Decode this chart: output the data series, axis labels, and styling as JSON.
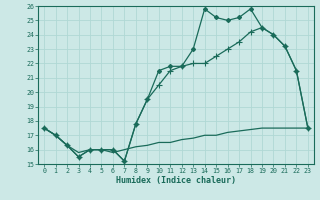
{
  "xlabel": "Humidex (Indice chaleur)",
  "line1_x": [
    0,
    1,
    2,
    3,
    4,
    5,
    6,
    7,
    8,
    9,
    10,
    11,
    12,
    13,
    14,
    15,
    16,
    17,
    18,
    19,
    20,
    21,
    22,
    23
  ],
  "line1_y": [
    17.5,
    17.0,
    16.3,
    15.5,
    16.0,
    16.0,
    16.0,
    15.2,
    17.8,
    19.5,
    21.5,
    21.8,
    21.8,
    23.0,
    25.8,
    25.2,
    25.0,
    25.2,
    25.8,
    24.5,
    24.0,
    23.2,
    21.5,
    17.5
  ],
  "line2_x": [
    0,
    1,
    2,
    3,
    4,
    5,
    6,
    7,
    8,
    9,
    10,
    11,
    12,
    13,
    14,
    15,
    16,
    17,
    18,
    19,
    20,
    21,
    22,
    23
  ],
  "line2_y": [
    17.5,
    17.0,
    16.3,
    15.5,
    16.0,
    16.0,
    16.0,
    15.2,
    17.8,
    19.5,
    20.5,
    21.5,
    21.8,
    22.0,
    22.0,
    22.5,
    23.0,
    23.5,
    24.2,
    24.5,
    24.0,
    23.2,
    21.5,
    17.5
  ],
  "line3_x": [
    0,
    1,
    2,
    3,
    4,
    5,
    6,
    7,
    8,
    9,
    10,
    11,
    12,
    13,
    14,
    15,
    16,
    17,
    18,
    19,
    20,
    21,
    22,
    23
  ],
  "line3_y": [
    17.5,
    17.0,
    16.3,
    15.8,
    16.0,
    16.0,
    15.8,
    16.0,
    16.2,
    16.3,
    16.5,
    16.5,
    16.7,
    16.8,
    17.0,
    17.0,
    17.2,
    17.3,
    17.4,
    17.5,
    17.5,
    17.5,
    17.5,
    17.5
  ],
  "line_color": "#1a6b5a",
  "bg_color": "#cce8e6",
  "grid_color": "#b0d8d5",
  "ylim": [
    15,
    26
  ],
  "xlim": [
    -0.5,
    23.5
  ],
  "yticks": [
    15,
    16,
    17,
    18,
    19,
    20,
    21,
    22,
    23,
    24,
    25,
    26
  ],
  "xticks": [
    0,
    1,
    2,
    3,
    4,
    5,
    6,
    7,
    8,
    9,
    10,
    11,
    12,
    13,
    14,
    15,
    16,
    17,
    18,
    19,
    20,
    21,
    22,
    23
  ]
}
